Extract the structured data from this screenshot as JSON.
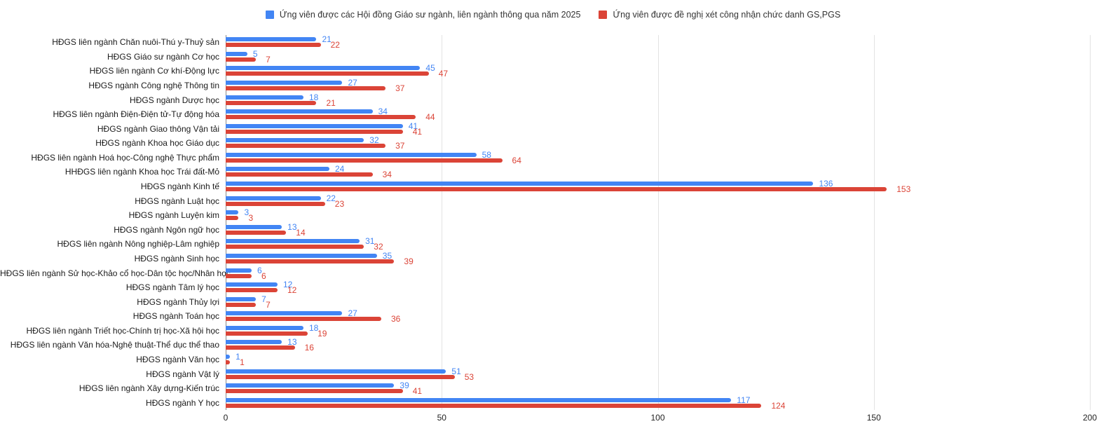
{
  "legend": {
    "items": [
      {
        "label": "Ứng viên được các Hội đồng Giáo sư ngành, liên ngành thông qua năm 2025",
        "color": "#4285f4"
      },
      {
        "label": "Ứng viên được đề nghị xét công nhận chức danh GS,PGS",
        "color": "#db4437"
      }
    ]
  },
  "chart_data": {
    "type": "bar",
    "orientation": "horizontal",
    "title": "",
    "xlabel": "",
    "ylabel": "",
    "xlim": [
      0,
      200
    ],
    "x_ticks": [
      0,
      50,
      100,
      150,
      200
    ],
    "grid": true,
    "legend_position": "top",
    "categories": [
      "HĐGS liên ngành Chăn nuôi-Thú y-Thuỷ sản",
      "HĐGS Giáo sư ngành Cơ học",
      "HĐGS liên ngành Cơ khí-Động lực",
      "HĐGS ngành Công nghệ Thông tin",
      "HĐGS ngành Dược học",
      "HĐGS liên ngành Điện-Điện tử-Tự động hóa",
      "HĐGS ngành Giao thông Vận tải",
      "HĐGS ngành Khoa học Giáo dục",
      "HĐGS liên ngành Hoá học-Công nghệ Thực phẩm",
      "HHĐGS liên ngành Khoa học Trái đất-Mỏ",
      "HĐGS ngành Kinh tế",
      "HĐGS ngành Luật học",
      "HĐGS ngành Luyện kim",
      "HĐGS ngành Ngôn ngữ học",
      "HĐGS liên ngành Nông nghiệp-Lâm nghiệp",
      "HĐGS ngành Sinh học",
      "HĐGS liên ngành Sử học-Khảo cổ học-Dân tộc học/Nhân học",
      "HĐGS ngành Tâm lý học",
      "HĐGS ngành Thủy lợi",
      "HĐGS ngành Toán học",
      "HĐGS liên ngành Triết học-Chính trị học-Xã hội học",
      "HĐGS liên ngành Văn hóa-Nghệ thuật-Thể dục thể thao",
      "HĐGS ngành Văn học",
      "HĐGS ngành Vật lý",
      "HĐGS liên ngành Xây dựng-Kiến trúc",
      "HĐGS ngành Y học"
    ],
    "series": [
      {
        "name": "Ứng viên được các Hội đồng Giáo sư ngành, liên ngành thông qua năm 2025",
        "color": "#4285f4",
        "values": [
          21,
          5,
          45,
          27,
          18,
          34,
          41,
          32,
          58,
          24,
          136,
          22,
          3,
          13,
          31,
          35,
          6,
          12,
          7,
          27,
          18,
          13,
          1,
          51,
          39,
          117
        ]
      },
      {
        "name": "Ứng viên được đề nghị xét công nhận chức danh GS,PGS",
        "color": "#db4437",
        "values": [
          22,
          7,
          47,
          37,
          21,
          44,
          41,
          37,
          64,
          34,
          153,
          23,
          3,
          14,
          32,
          39,
          6,
          12,
          7,
          36,
          19,
          16,
          1,
          53,
          41,
          124
        ]
      }
    ]
  }
}
